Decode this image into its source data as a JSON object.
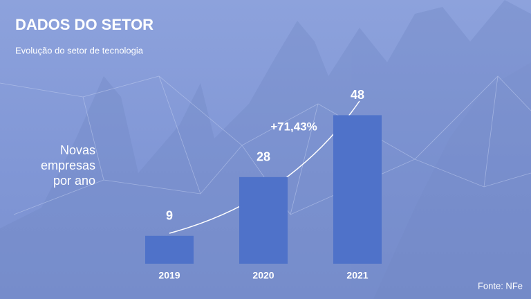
{
  "chart_data": {
    "type": "bar",
    "title": "DADOS DO SETOR",
    "subtitle": "Evolução do setor de tecnologia",
    "y_label": "Novas empresas por ano",
    "categories": [
      "2019",
      "2020",
      "2021"
    ],
    "values": [
      9,
      28,
      48
    ],
    "color": "#4f72c9",
    "ylim": [
      0,
      50
    ],
    "annotation": "+71,43%",
    "source": "Fonte: NFe"
  }
}
